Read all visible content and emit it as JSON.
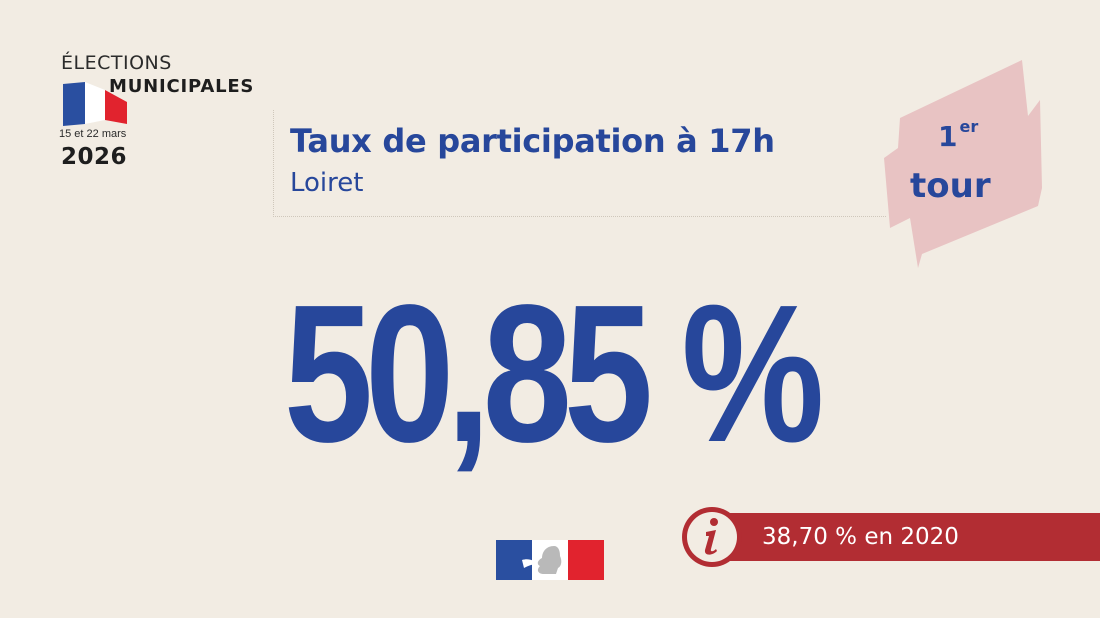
{
  "logo": {
    "line1": "ÉLECTIONS",
    "line2": "MUNICIPALES",
    "dates": "15 et 22 mars",
    "year": "2026"
  },
  "header": {
    "title": "Taux de participation à 17h",
    "subtitle": "Loiret"
  },
  "tour": {
    "number": "1",
    "suffix": "er",
    "label": "tour"
  },
  "participation": {
    "value_text": "50,85 %"
  },
  "comparison": {
    "text": "38,70 % en 2020",
    "icon": "info-icon"
  },
  "colors": {
    "background": "#f2ece3",
    "primary_blue": "#27479b",
    "red": "#b22d33",
    "tour_pink": "#e8c3c3"
  }
}
